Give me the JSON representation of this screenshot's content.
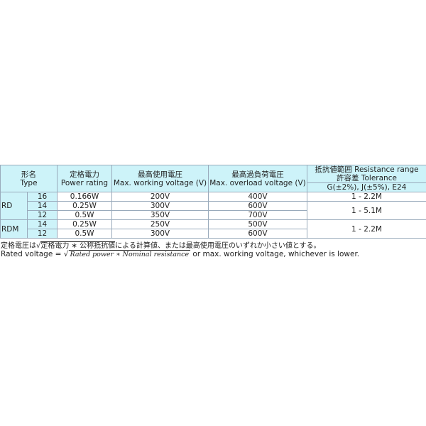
{
  "header": {
    "type_ja": "形名",
    "type_en": "Type",
    "power_ja": "定格電力",
    "power_en": "Power rating",
    "working_ja": "最高使用電圧",
    "working_en": "Max. working voltage (V)",
    "overload_ja": "最高過負荷電圧",
    "overload_en": "Max. overload voltage (V)",
    "resistance_ja_en": "抵抗値範囲 Resistance range",
    "tolerance_ja_en": "許容差 Tolerance",
    "tolerance_values": "G(±2%), J(±5%), E24"
  },
  "groups": [
    {
      "name": "RD",
      "rows": [
        {
          "size": "16",
          "power": "0.166W",
          "working": "200V",
          "overload": "400V"
        },
        {
          "size": "14",
          "power": "0.25W",
          "working": "300V",
          "overload": "600V"
        },
        {
          "size": "12",
          "power": "0.5W",
          "working": "350V",
          "overload": "700V"
        }
      ],
      "ranges": [
        "1 - 2.2M",
        "1 - 5.1M"
      ]
    },
    {
      "name": "RDM",
      "rows": [
        {
          "size": "14",
          "power": "0.25W",
          "working": "250V",
          "overload": "500V"
        },
        {
          "size": "12",
          "power": "0.5W",
          "working": "300V",
          "overload": "600V"
        }
      ],
      "ranges": [
        "1 - 2.2M"
      ]
    }
  ],
  "notes": {
    "ja_prefix": "定格電圧は",
    "ja_sqrt": "定格電力 ∗ 公称抵抗値",
    "ja_suffix": "による計算値、または最高使用電圧のいずれか小さい値とする。",
    "en_prefix": "Rated voltage = ",
    "en_sqrt": "Rated power  ∗ Nominal resistance",
    "en_suffix": " or max. working voltage, whichever is lower."
  },
  "colors": {
    "header_bg": "#cdf3f9"
  }
}
